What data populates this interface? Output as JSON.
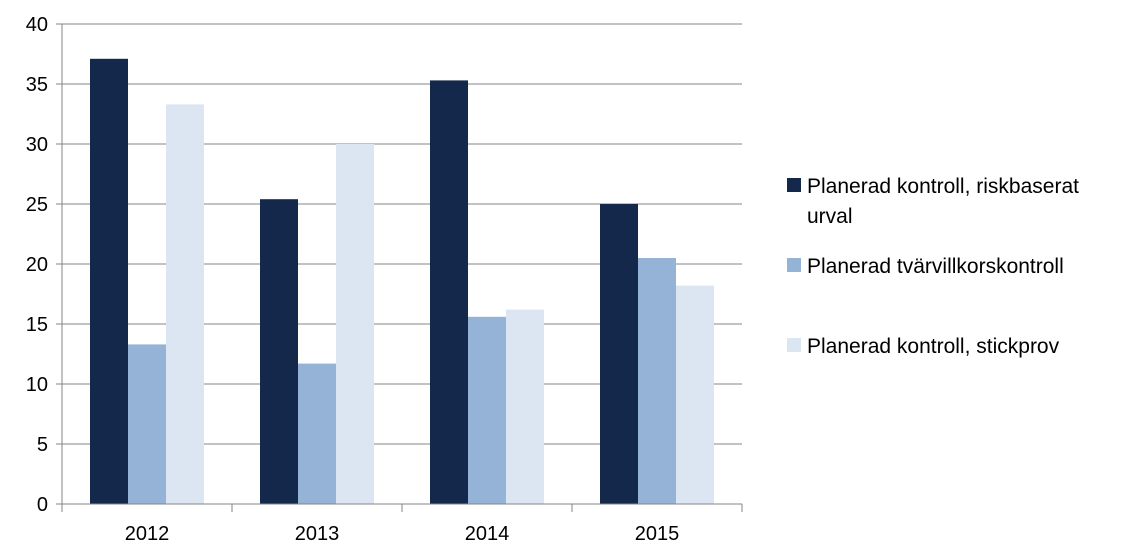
{
  "chart_data": {
    "type": "bar",
    "categories": [
      "2012",
      "2013",
      "2014",
      "2015"
    ],
    "series": [
      {
        "name": "Planerad kontroll, riskbaserat urval",
        "color": "#13284a",
        "values": [
          37.1,
          25.4,
          35.3,
          25.0
        ]
      },
      {
        "name": "Planerad tvärvillkorskontroll",
        "color": "#95b3d7",
        "values": [
          13.3,
          11.7,
          15.6,
          20.5
        ]
      },
      {
        "name": "Planerad kontroll, stickprov",
        "color": "#dce6f2",
        "values": [
          33.3,
          30.0,
          16.2,
          18.2
        ]
      }
    ],
    "ylim": [
      0,
      40
    ],
    "yticks": [
      "0",
      "5",
      "10",
      "15",
      "20",
      "25",
      "30",
      "35",
      "40"
    ],
    "grid": true,
    "legend_position": "right",
    "title": "",
    "xlabel": "",
    "ylabel": ""
  }
}
